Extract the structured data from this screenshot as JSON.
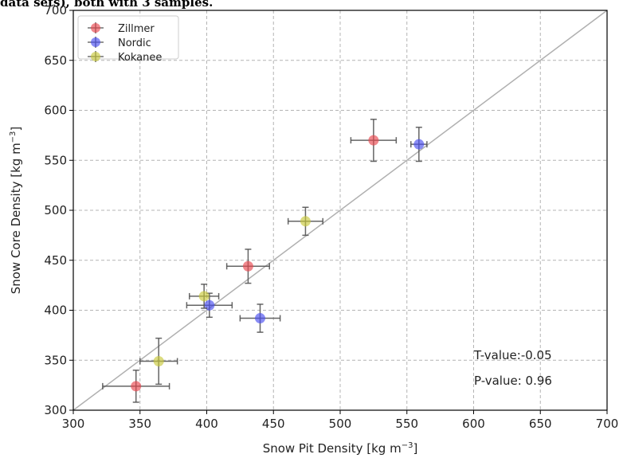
{
  "caption": "data sets), both with 3 samples.",
  "chart_data": {
    "type": "scatter",
    "xlabel": "Snow Pit Density [kg m",
    "ylabel": "Snow Core Density [kg m",
    "unit_exponent": "−3",
    "unit_close": "]",
    "xlim": [
      300,
      700
    ],
    "ylim": [
      300,
      700
    ],
    "xticks": [
      "300",
      "350",
      "400",
      "450",
      "500",
      "550",
      "600",
      "650",
      "700"
    ],
    "yticks": [
      "300",
      "350",
      "400",
      "450",
      "500",
      "550",
      "600",
      "650",
      "700"
    ],
    "grid": true,
    "legend_position": "top-left",
    "reference_line": {
      "type": "one-to-one",
      "color": "#b0b0b0"
    },
    "series": [
      {
        "name": "Zillmer",
        "color": "#e8474f",
        "points": [
          {
            "x": 347,
            "y": 324,
            "xerr": 25,
            "yerr": 16
          },
          {
            "x": 431,
            "y": 444,
            "xerr": 16,
            "yerr": 17
          },
          {
            "x": 525,
            "y": 570,
            "xerr": 17,
            "yerr": 21
          }
        ]
      },
      {
        "name": "Nordic",
        "color": "#4a4ef0",
        "points": [
          {
            "x": 402,
            "y": 405,
            "xerr": 17,
            "yerr": 12
          },
          {
            "x": 440,
            "y": 392,
            "xerr": 15,
            "yerr": 14
          },
          {
            "x": 559,
            "y": 566,
            "xerr": 6,
            "yerr": 17
          }
        ]
      },
      {
        "name": "Kokanee",
        "color": "#c8c83a",
        "points": [
          {
            "x": 364,
            "y": 349,
            "xerr": 14,
            "yerr": 23
          },
          {
            "x": 398,
            "y": 414,
            "xerr": 11,
            "yerr": 12
          },
          {
            "x": 474,
            "y": 489,
            "xerr": 13,
            "yerr": 14
          }
        ]
      }
    ],
    "annotations": [
      "T-value:-0.05",
      "P-value: 0.96"
    ]
  }
}
